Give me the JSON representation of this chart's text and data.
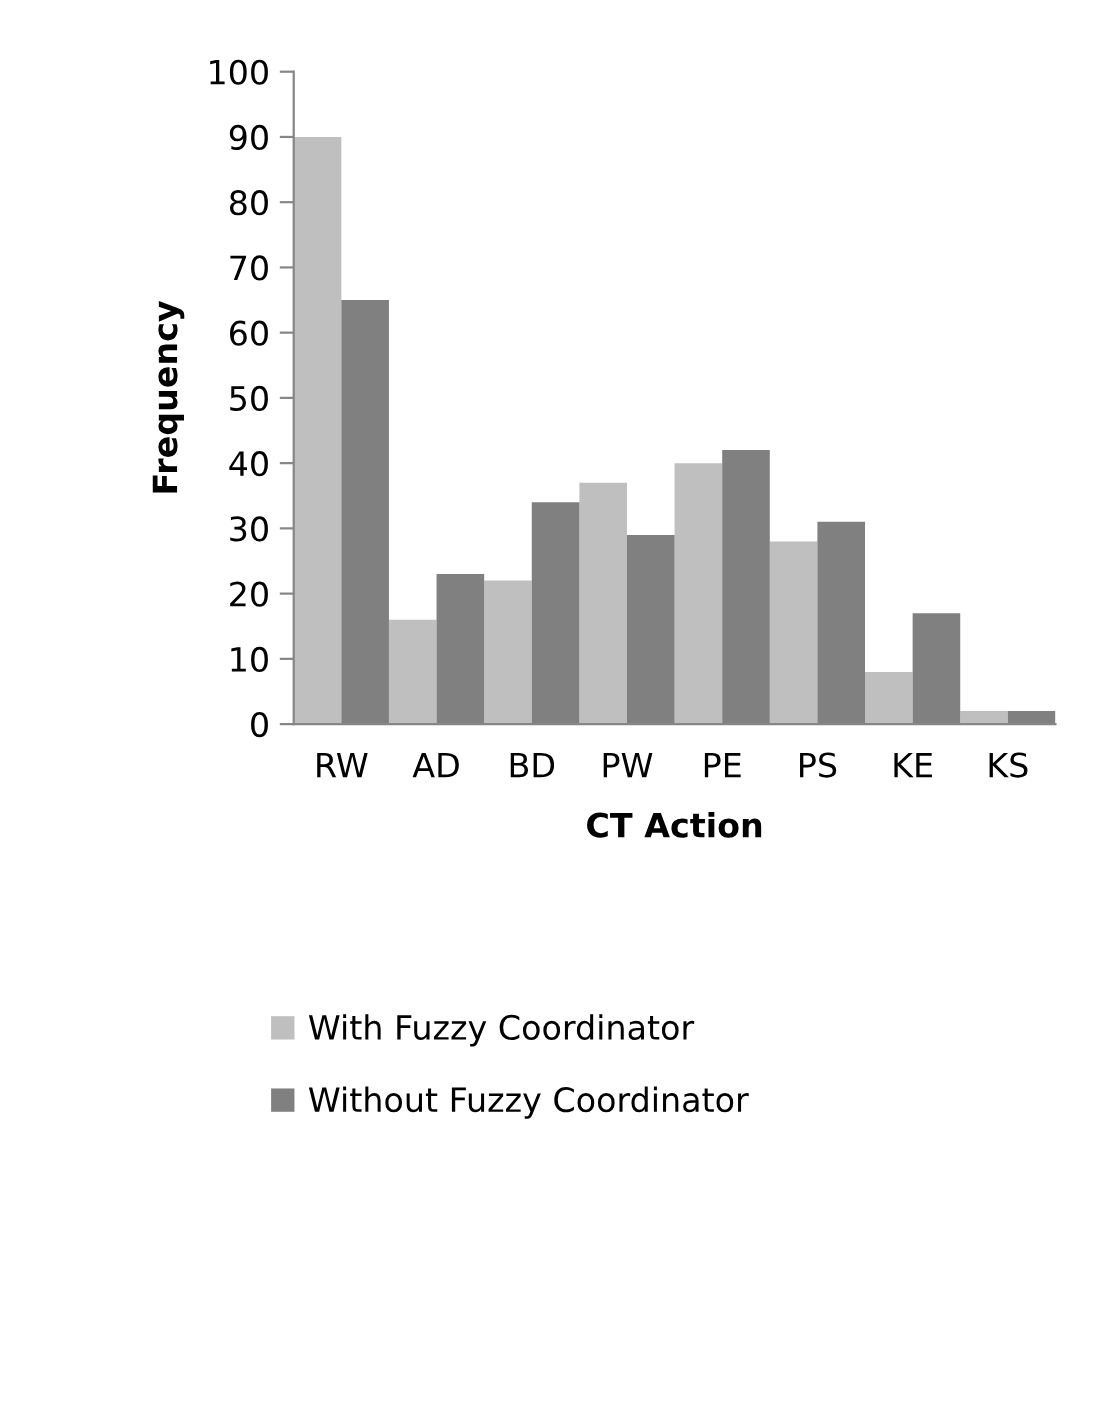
{
  "chart_data": {
    "type": "bar",
    "xlabel": "CT Action",
    "ylabel": "Frequency",
    "categories": [
      "RW",
      "AD",
      "BD",
      "PW",
      "PE",
      "PS",
      "KE",
      "KS"
    ],
    "series": [
      {
        "name": "With Fuzzy Coordinator",
        "color": "#bfbfbf",
        "values": [
          90,
          16,
          22,
          37,
          40,
          28,
          8,
          2
        ]
      },
      {
        "name": "Without Fuzzy Coordinator",
        "color": "#808080",
        "values": [
          65,
          23,
          34,
          29,
          42,
          31,
          17,
          2
        ]
      }
    ],
    "ylim": [
      0,
      100
    ],
    "yticks": [
      0,
      10,
      20,
      30,
      40,
      50,
      60,
      70,
      80,
      90,
      100
    ],
    "grid": false,
    "legend": "bottom"
  }
}
